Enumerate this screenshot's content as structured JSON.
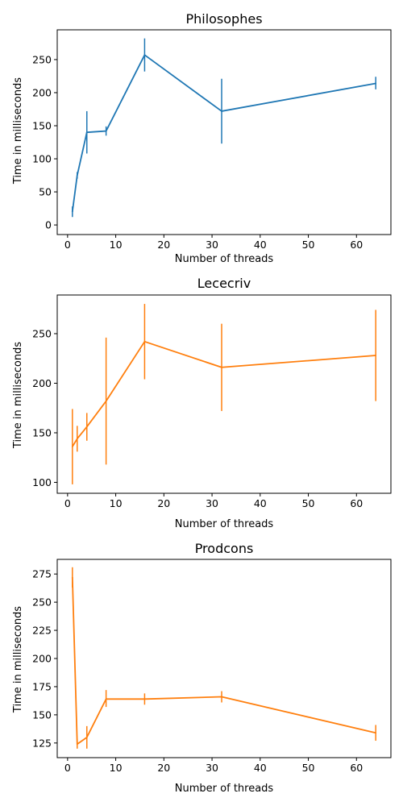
{
  "chart_data": [
    {
      "type": "line",
      "title": "Philosophes",
      "xlabel": "Number of threads",
      "ylabel": "Time in milliseconds",
      "color": "#1f77b4",
      "x": [
        1,
        2,
        4,
        8,
        16,
        32,
        64
      ],
      "y": [
        20,
        75,
        140,
        142,
        257,
        172,
        214
      ],
      "err_low": [
        12,
        70,
        108,
        135,
        232,
        123,
        205
      ],
      "err_high": [
        28,
        80,
        172,
        149,
        282,
        221,
        224
      ],
      "xlim": [
        -2.15,
        67.15
      ],
      "ylim": [
        -14.5,
        295
      ],
      "xticks": [
        0,
        10,
        20,
        30,
        40,
        50,
        60
      ],
      "yticks": [
        0,
        50,
        100,
        150,
        200,
        250
      ],
      "xtick_labels": [
        "0",
        "10",
        "20",
        "30",
        "40",
        "50",
        "60"
      ],
      "ytick_labels": [
        "0",
        "50",
        "100",
        "150",
        "200",
        "250"
      ]
    },
    {
      "type": "line",
      "title": "Lececriv",
      "xlabel": "Number of threads",
      "ylabel": "Time in milliseconds",
      "color": "#ff7f0e",
      "x": [
        1,
        2,
        4,
        8,
        16,
        32,
        64
      ],
      "y": [
        136,
        144,
        156,
        182,
        242,
        216,
        228
      ],
      "err_low": [
        98,
        131,
        142,
        118,
        204,
        172,
        182
      ],
      "err_high": [
        174,
        157,
        170,
        246,
        280,
        260,
        274
      ],
      "xlim": [
        -2.15,
        67.15
      ],
      "ylim": [
        89,
        289
      ],
      "xticks": [
        0,
        10,
        20,
        30,
        40,
        50,
        60
      ],
      "yticks": [
        100,
        150,
        200,
        250
      ],
      "xtick_labels": [
        "0",
        "10",
        "20",
        "30",
        "40",
        "50",
        "60"
      ],
      "ytick_labels": [
        "100",
        "150",
        "200",
        "250"
      ]
    },
    {
      "type": "line",
      "title": "Prodcons",
      "xlabel": "Number of threads",
      "ylabel": "Time in milliseconds",
      "color": "#ff7f0e",
      "x": [
        1,
        2,
        4,
        8,
        16,
        32,
        64
      ],
      "y": [
        272,
        124,
        130,
        164,
        164,
        166,
        134
      ],
      "err_low": [
        263,
        120,
        120,
        157,
        159,
        161,
        127
      ],
      "err_high": [
        281,
        128,
        140,
        172,
        169,
        171,
        141
      ],
      "xlim": [
        -2.15,
        67.15
      ],
      "ylim": [
        112,
        288
      ],
      "xticks": [
        0,
        10,
        20,
        30,
        40,
        50,
        60
      ],
      "yticks": [
        125,
        150,
        175,
        200,
        225,
        250,
        275
      ],
      "xtick_labels": [
        "0",
        "10",
        "20",
        "30",
        "40",
        "50",
        "60"
      ],
      "ytick_labels": [
        "125",
        "150",
        "175",
        "200",
        "225",
        "250",
        "275"
      ]
    }
  ]
}
